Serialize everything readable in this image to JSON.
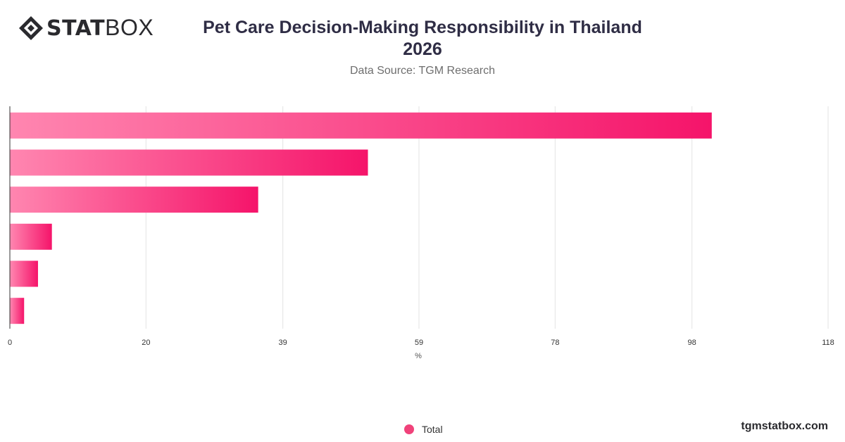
{
  "brand": {
    "logo_bold": "STAT",
    "logo_light": "BOX",
    "watermark": "tgmstatbox.com"
  },
  "header": {
    "title_line1": "Pet Care Decision-Making Responsibility in Thailand",
    "title_line2": "2026",
    "subtitle": "Data Source: TGM Research"
  },
  "legend": {
    "label": "Total"
  },
  "colors": {
    "bar_start": "#ff86b0",
    "bar_end": "#f5146a",
    "grid": "#e3e3e3",
    "axis": "#333333",
    "legend_dot": "#f0427a"
  },
  "chart_data": {
    "type": "bar",
    "orientation": "horizontal",
    "categories": [
      "",
      "",
      "",
      "",
      "",
      ""
    ],
    "series": [
      {
        "name": "Total",
        "values": [
          101,
          51.5,
          35.7,
          6,
          4,
          2
        ]
      }
    ],
    "x_ticks": [
      "0",
      "20",
      "39",
      "59",
      "78",
      "98",
      "118"
    ],
    "x_tick_values": [
      0,
      19.6,
      39.3,
      58.9,
      78.5,
      98.2,
      117.8
    ],
    "xlabel": "%",
    "ylabel": "",
    "xlim": [
      0,
      117.8
    ],
    "grid": true,
    "legend_position": "bottom-center"
  }
}
